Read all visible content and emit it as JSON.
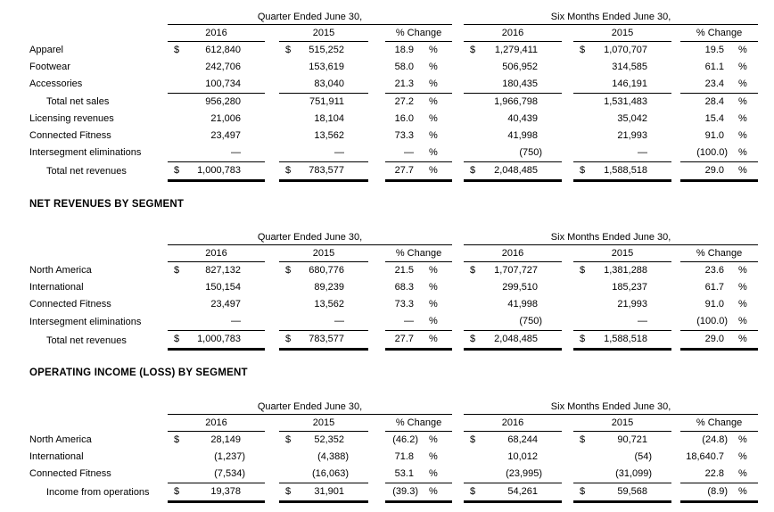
{
  "glyphs": {
    "dollar": "$",
    "percent": "%"
  },
  "sections": [
    {
      "title": "",
      "group_headers": [
        "Quarter Ended June 30,",
        "Six Months Ended June 30,"
      ],
      "column_headers": [
        "2016",
        "2015",
        "% Change"
      ],
      "rows": [
        {
          "label": "Apparel",
          "indent": false,
          "dollar": true,
          "rule": "none",
          "cells": {
            "q2016": "612,840",
            "q2015": "515,252",
            "q_change": "18.9",
            "s2016": "1,279,411",
            "s2015": "1,070,707",
            "s_change": "19.5"
          }
        },
        {
          "label": "Footwear",
          "indent": false,
          "dollar": false,
          "rule": "none",
          "cells": {
            "q2016": "242,706",
            "q2015": "153,619",
            "q_change": "58.0",
            "s2016": "506,952",
            "s2015": "314,585",
            "s_change": "61.1"
          }
        },
        {
          "label": "Accessories",
          "indent": false,
          "dollar": false,
          "rule": "single",
          "cells": {
            "q2016": "100,734",
            "q2015": "83,040",
            "q_change": "21.3",
            "s2016": "180,435",
            "s2015": "146,191",
            "s_change": "23.4"
          }
        },
        {
          "label": "Total net sales",
          "indent": true,
          "dollar": false,
          "rule": "none",
          "cells": {
            "q2016": "956,280",
            "q2015": "751,911",
            "q_change": "27.2",
            "s2016": "1,966,798",
            "s2015": "1,531,483",
            "s_change": "28.4"
          }
        },
        {
          "label": "Licensing revenues",
          "indent": false,
          "dollar": false,
          "rule": "none",
          "cells": {
            "q2016": "21,006",
            "q2015": "18,104",
            "q_change": "16.0",
            "s2016": "40,439",
            "s2015": "35,042",
            "s_change": "15.4"
          }
        },
        {
          "label": "Connected Fitness",
          "indent": false,
          "dollar": false,
          "rule": "none",
          "cells": {
            "q2016": "23,497",
            "q2015": "13,562",
            "q_change": "73.3",
            "s2016": "41,998",
            "s2015": "21,993",
            "s_change": "91.0"
          }
        },
        {
          "label": "Intersegment eliminations",
          "indent": false,
          "dollar": false,
          "rule": "single",
          "cells": {
            "q2016": "—",
            "q2015": "—",
            "q_change": "—",
            "s2016": "(750)",
            "s2015": "—",
            "s_change": "(100.0)"
          }
        },
        {
          "label": "Total net revenues",
          "indent": true,
          "dollar": true,
          "rule": "total",
          "cells": {
            "q2016": "1,000,783",
            "q2015": "783,577",
            "q_change": "27.7",
            "s2016": "2,048,485",
            "s2015": "1,588,518",
            "s_change": "29.0"
          }
        }
      ]
    },
    {
      "title": "NET REVENUES BY SEGMENT",
      "group_headers": [
        "Quarter Ended June 30,",
        "Six Months Ended June 30,"
      ],
      "column_headers": [
        "2016",
        "2015",
        "% Change"
      ],
      "rows": [
        {
          "label": "North America",
          "indent": false,
          "dollar": true,
          "rule": "none",
          "cells": {
            "q2016": "827,132",
            "q2015": "680,776",
            "q_change": "21.5",
            "s2016": "1,707,727",
            "s2015": "1,381,288",
            "s_change": "23.6"
          }
        },
        {
          "label": "International",
          "indent": false,
          "dollar": false,
          "rule": "none",
          "cells": {
            "q2016": "150,154",
            "q2015": "89,239",
            "q_change": "68.3",
            "s2016": "299,510",
            "s2015": "185,237",
            "s_change": "61.7"
          }
        },
        {
          "label": "Connected Fitness",
          "indent": false,
          "dollar": false,
          "rule": "none",
          "cells": {
            "q2016": "23,497",
            "q2015": "13,562",
            "q_change": "73.3",
            "s2016": "41,998",
            "s2015": "21,993",
            "s_change": "91.0"
          }
        },
        {
          "label": "Intersegment eliminations",
          "indent": false,
          "dollar": false,
          "rule": "single",
          "cells": {
            "q2016": "—",
            "q2015": "—",
            "q_change": "—",
            "s2016": "(750)",
            "s2015": "—",
            "s_change": "(100.0)"
          }
        },
        {
          "label": "Total net revenues",
          "indent": true,
          "dollar": true,
          "rule": "total",
          "cells": {
            "q2016": "1,000,783",
            "q2015": "783,577",
            "q_change": "27.7",
            "s2016": "2,048,485",
            "s2015": "1,588,518",
            "s_change": "29.0"
          }
        }
      ]
    },
    {
      "title": "OPERATING INCOME (LOSS) BY SEGMENT",
      "group_headers": [
        "Quarter Ended June 30,",
        "Six Months Ended June 30,"
      ],
      "column_headers": [
        "2016",
        "2015",
        "% Change"
      ],
      "rows": [
        {
          "label": "North America",
          "indent": false,
          "dollar": true,
          "rule": "none",
          "cells": {
            "q2016": "28,149",
            "q2015": "52,352",
            "q_change": "(46.2)",
            "s2016": "68,244",
            "s2015": "90,721",
            "s_change": "(24.8)"
          }
        },
        {
          "label": "International",
          "indent": false,
          "dollar": false,
          "rule": "none",
          "cells": {
            "q2016": "(1,237)",
            "q2015": "(4,388)",
            "q_change": "71.8",
            "s2016": "10,012",
            "s2015": "(54)",
            "s_change": "18,640.7"
          }
        },
        {
          "label": "Connected Fitness",
          "indent": false,
          "dollar": false,
          "rule": "single",
          "cells": {
            "q2016": "(7,534)",
            "q2015": "(16,063)",
            "q_change": "53.1",
            "s2016": "(23,995)",
            "s2015": "(31,099)",
            "s_change": "22.8"
          }
        },
        {
          "label": "Income from operations",
          "indent": true,
          "dollar": true,
          "rule": "total",
          "cells": {
            "q2016": "19,378",
            "q2015": "31,901",
            "q_change": "(39.3)",
            "s2016": "54,261",
            "s2015": "59,568",
            "s_change": "(8.9)"
          }
        }
      ]
    }
  ]
}
